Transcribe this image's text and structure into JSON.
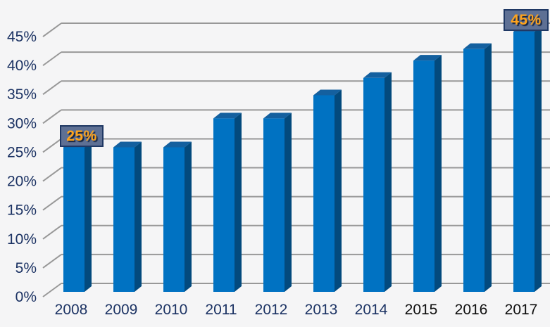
{
  "chart_data": {
    "type": "bar",
    "style": "3d-column",
    "title": "",
    "xlabel": "",
    "ylabel": "",
    "categories": [
      "2008",
      "2009",
      "2010",
      "2011",
      "2012",
      "2013",
      "2014",
      "2015",
      "2016",
      "2017"
    ],
    "values": [
      25,
      25,
      25,
      30,
      30,
      34,
      37,
      40,
      42,
      45
    ],
    "unit": "%",
    "ylim": [
      0,
      45
    ],
    "y_tick_step": 5,
    "y_ticks": [
      "0%",
      "5%",
      "10%",
      "15%",
      "20%",
      "25%",
      "30%",
      "35%",
      "40%",
      "45%"
    ],
    "grid": true,
    "legend": "none",
    "black_label_years": [
      "2015",
      "2016",
      "2017"
    ],
    "callouts": [
      {
        "year": "2008",
        "text": "25%"
      },
      {
        "year": "2017",
        "text": "45%"
      }
    ],
    "colors": {
      "bar_front": "#0072c2",
      "bar_top": "#14609f",
      "bar_side": "#034a7d",
      "gridline": "#989898",
      "axis_text": "#1b3263",
      "axis_text_black": "#0d0d0d",
      "callout_bg": "#5e7094",
      "callout_border": "#1f3864",
      "callout_text": "#ffa41c",
      "background": "#f5f5f6"
    }
  }
}
